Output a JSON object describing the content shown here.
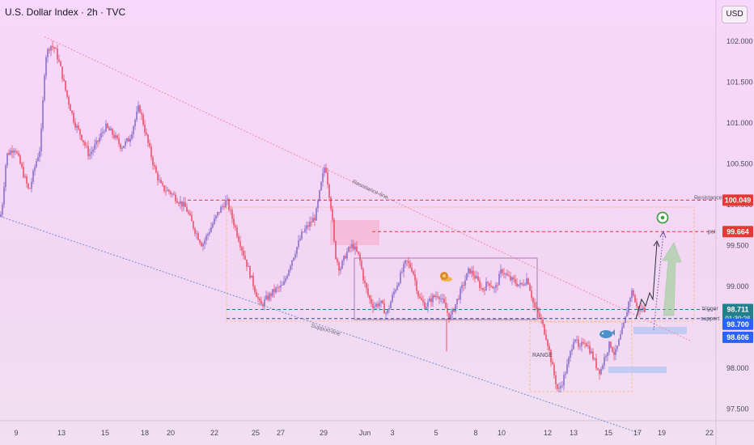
{
  "header": {
    "title": "U.S. Dollar Index · 2h · TVC",
    "currency_button": "USD"
  },
  "chart_data": {
    "type": "candlestick",
    "y_range": [
      97.35,
      102.35
    ],
    "y_ticks": [
      "102.000",
      "101.500",
      "101.000",
      "100.500",
      "100.000",
      "99.500",
      "99.000",
      "98.500",
      "98.000",
      "97.500"
    ],
    "y_tick_values": [
      102.0,
      101.5,
      101.0,
      100.5,
      100.0,
      99.5,
      99.0,
      98.5,
      98.0,
      97.5
    ],
    "x_ticks": [
      "9",
      "13",
      "15",
      "18",
      "20",
      "22",
      "25",
      "27",
      "29",
      "Jun",
      "3",
      "5",
      "8",
      "10",
      "12",
      "13",
      "15",
      "17",
      "19",
      "22"
    ],
    "price_path": [
      [
        0,
        99.85
      ],
      [
        2,
        99.9
      ],
      [
        8,
        100.6
      ],
      [
        18,
        100.7
      ],
      [
        28,
        100.4
      ],
      [
        36,
        100.15
      ],
      [
        44,
        100.5
      ],
      [
        50,
        100.7
      ],
      [
        56,
        101.8
      ],
      [
        62,
        101.95
      ],
      [
        68,
        101.9
      ],
      [
        74,
        101.7
      ],
      [
        82,
        101.35
      ],
      [
        92,
        101.0
      ],
      [
        102,
        100.8
      ],
      [
        110,
        100.6
      ],
      [
        120,
        100.75
      ],
      [
        130,
        100.95
      ],
      [
        140,
        100.85
      ],
      [
        150,
        100.7
      ],
      [
        160,
        100.8
      ],
      [
        166,
        101.0
      ],
      [
        172,
        101.2
      ],
      [
        178,
        100.95
      ],
      [
        184,
        100.7
      ],
      [
        192,
        100.4
      ],
      [
        200,
        100.2
      ],
      [
        210,
        100.15
      ],
      [
        220,
        100.05
      ],
      [
        230,
        99.95
      ],
      [
        240,
        99.7
      ],
      [
        250,
        99.5
      ],
      [
        260,
        99.7
      ],
      [
        270,
        99.9
      ],
      [
        280,
        100.05
      ],
      [
        288,
        99.8
      ],
      [
        296,
        99.55
      ],
      [
        304,
        99.3
      ],
      [
        312,
        99.05
      ],
      [
        322,
        98.75
      ],
      [
        330,
        98.85
      ],
      [
        340,
        98.95
      ],
      [
        350,
        99.0
      ],
      [
        358,
        99.25
      ],
      [
        366,
        99.45
      ],
      [
        374,
        99.65
      ],
      [
        382,
        99.75
      ],
      [
        390,
        99.85
      ],
      [
        398,
        100.3
      ],
      [
        402,
        100.5
      ],
      [
        406,
        100.2
      ],
      [
        410,
        99.9
      ],
      [
        414,
        99.4
      ],
      [
        420,
        99.2
      ],
      [
        428,
        99.4
      ],
      [
        436,
        99.5
      ],
      [
        444,
        99.35
      ],
      [
        450,
        99.05
      ],
      [
        456,
        98.85
      ],
      [
        462,
        98.75
      ],
      [
        470,
        98.8
      ],
      [
        478,
        98.65
      ],
      [
        486,
        98.9
      ],
      [
        494,
        99.1
      ],
      [
        502,
        99.3
      ],
      [
        510,
        99.2
      ],
      [
        518,
        98.85
      ],
      [
        526,
        98.75
      ],
      [
        534,
        98.85
      ],
      [
        542,
        98.9
      ],
      [
        550,
        98.75
      ],
      [
        556,
        98.6
      ],
      [
        564,
        98.8
      ],
      [
        572,
        99.0
      ],
      [
        580,
        99.2
      ],
      [
        588,
        99.1
      ],
      [
        596,
        98.95
      ],
      [
        604,
        99.05
      ],
      [
        612,
        98.95
      ],
      [
        620,
        99.2
      ],
      [
        628,
        99.1
      ],
      [
        636,
        99.05
      ],
      [
        644,
        99.0
      ],
      [
        652,
        99.1
      ],
      [
        660,
        98.75
      ],
      [
        668,
        98.6
      ],
      [
        676,
        98.35
      ],
      [
        684,
        97.95
      ],
      [
        690,
        97.7
      ],
      [
        696,
        97.85
      ],
      [
        702,
        98.05
      ],
      [
        710,
        98.4
      ],
      [
        716,
        98.2
      ],
      [
        722,
        98.35
      ],
      [
        730,
        98.2
      ],
      [
        738,
        98.0
      ],
      [
        742,
        97.95
      ],
      [
        748,
        98.15
      ],
      [
        754,
        98.3
      ],
      [
        760,
        98.15
      ],
      [
        766,
        98.35
      ],
      [
        772,
        98.55
      ],
      [
        778,
        98.85
      ],
      [
        782,
        98.95
      ],
      [
        786,
        98.75
      ],
      [
        790,
        98.7
      ],
      [
        794,
        98.72
      ],
      [
        798,
        98.71
      ]
    ],
    "resistance_line": [
      [
        55,
        102.05
      ],
      [
        855,
        98.32
      ]
    ],
    "support_line": [
      [
        0,
        99.85
      ],
      [
        790,
        97.2
      ]
    ],
    "levels": [
      {
        "name": "Resistance",
        "value": 100.049,
        "label": "100.049",
        "color": "#e53935"
      },
      {
        "name": "poi",
        "value": 99.664,
        "label": "99.664",
        "color": "#e53935"
      },
      {
        "name": "trigger",
        "value": 98.711,
        "label": "98.711",
        "color": "#1f7a86"
      },
      {
        "name": "support",
        "value": 98.6,
        "label": "",
        "color": "#2a4c8c"
      }
    ],
    "price_tags": [
      {
        "label": "98.711",
        "sub": "01:30:26",
        "value": 98.711,
        "color": "#22808c"
      },
      {
        "label": "98.700",
        "value": 98.6,
        "color": "#2962ff"
      },
      {
        "label": "98.606",
        "value": 98.44,
        "color": "#2962ff"
      }
    ],
    "annotations": {
      "resistance_line": "Resistance-line",
      "support_line": "Support-line",
      "range": "RANGE",
      "resistance": "Resistance",
      "poi": "poi",
      "trigger": "trigger",
      "support": "support"
    },
    "colors": {
      "candle": "#e8526a",
      "candle_up": "#8a6fc9",
      "resistance_trend": "#f28aa0",
      "support_trend": "#6f8fd6",
      "range_box": "#a57ab1",
      "orange_box": "#f3b979",
      "forecast_arrow": "#8fcf8a",
      "target_icon": "#43a047"
    }
  }
}
